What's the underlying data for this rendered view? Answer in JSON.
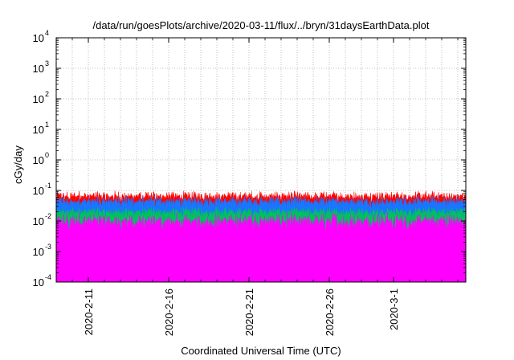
{
  "chart_data": {
    "type": "area",
    "title": "/data/run/goesPlots/archive/2020-03-11/flux/../bryn/31daysEarthData.plot",
    "xlabel": "Coordinated Universal Time (UTC)",
    "ylabel": "cGy/day",
    "yscale": "log",
    "ylim": [
      0.0001,
      10000
    ],
    "xlim": [
      "2020-02-09T00:00",
      "2020-03-05T12:00"
    ],
    "grid": true,
    "y_ticks": [
      {
        "mant": "10",
        "exp": "-4"
      },
      {
        "mant": "10",
        "exp": "-3"
      },
      {
        "mant": "10",
        "exp": "-2"
      },
      {
        "mant": "10",
        "exp": "-1"
      },
      {
        "mant": "10",
        "exp": "0"
      },
      {
        "mant": "10",
        "exp": "1"
      },
      {
        "mant": "10",
        "exp": "2"
      },
      {
        "mant": "10",
        "exp": "3"
      },
      {
        "mant": "10",
        "exp": "4"
      }
    ],
    "x_ticks": [
      {
        "date": "2020-02-11",
        "label": "2020-2-11"
      },
      {
        "date": "2020-02-16",
        "label": "2020-2-16"
      },
      {
        "date": "2020-02-21",
        "label": "2020-2-21"
      },
      {
        "date": "2020-02-26",
        "label": "2020-2-26"
      },
      {
        "date": "2020-03-01",
        "label": "2020-3-1"
      }
    ],
    "series": [
      {
        "color": "#ff0000",
        "typical_peak": 0.07,
        "range": [
          0.04,
          0.1
        ]
      },
      {
        "color": "#1a75ff",
        "typical_peak": 0.045,
        "range": [
          0.025,
          0.07
        ]
      },
      {
        "color": "#00c060",
        "typical_peak": 0.02,
        "range": [
          0.012,
          0.03
        ]
      },
      {
        "color": "#ff00ff",
        "typical_peak": 0.012,
        "range": [
          0.004,
          0.02
        ]
      }
    ],
    "dropouts": [
      {
        "date": "2020-02-12T06:00",
        "value": 0.0001
      },
      {
        "date": "2020-02-14T03:00",
        "value": 0.0001
      },
      {
        "date": "2020-02-21T00:00",
        "value": 0.0001
      },
      {
        "date": "2020-02-25T18:00",
        "value": 0.0001
      },
      {
        "date": "2020-02-28T06:00",
        "value": 0.0001
      },
      {
        "date": "2020-03-03T12:00",
        "value": 0.0001
      },
      {
        "date": "2020-03-05T06:00",
        "value": 0.0001
      }
    ]
  }
}
